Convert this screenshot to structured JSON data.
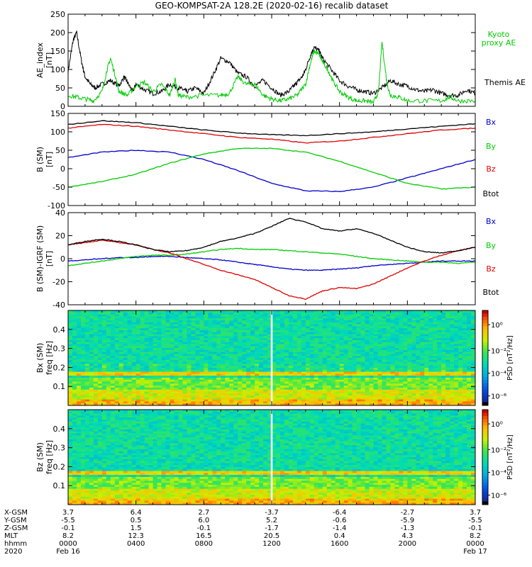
{
  "title": "GEO-KOMPSAT-2A 128.2E (2020-02-16) recalib dataset",
  "colors": {
    "black": "#000000",
    "green": "#00cc00",
    "red": "#dd0000",
    "blue": "#0000cc"
  },
  "chart_data": [
    {
      "type": "line",
      "panel": "ae_index",
      "ylabel": "AE_index",
      "yunit": "[nT]",
      "ylim": [
        0,
        250
      ],
      "yticks": [
        "0",
        "50",
        "100",
        "150",
        "200",
        "250"
      ],
      "series": [
        {
          "name": "Themis AE",
          "color": "black",
          "x": [
            0,
            0.3,
            0.5,
            0.8,
            1.0,
            1.3,
            1.6,
            2.0,
            2.5,
            3.0,
            3.3,
            3.5,
            3.8,
            4.0,
            4.5,
            5.0,
            5.5,
            6.0,
            6.5,
            6.8,
            7.0,
            7.5,
            8.0,
            8.5,
            9.0,
            9.5,
            10.0,
            10.5,
            11.0,
            11.5,
            12.0,
            12.5,
            13.0,
            13.3,
            13.5,
            13.8,
            14.0,
            14.3,
            14.5,
            14.8,
            15.0,
            15.5,
            16.0,
            16.5,
            17.0,
            17.5,
            18.0,
            18.5,
            19.0,
            19.5,
            20.0,
            20.5,
            21.0,
            21.5,
            22.0,
            22.5,
            23.0,
            23.5,
            24.0
          ],
          "y": [
            95,
            180,
            200,
            120,
            80,
            60,
            50,
            60,
            70,
            55,
            80,
            65,
            40,
            60,
            45,
            35,
            40,
            60,
            50,
            45,
            40,
            50,
            35,
            80,
            130,
            120,
            90,
            80,
            55,
            70,
            50,
            30,
            40,
            55,
            65,
            80,
            100,
            140,
            160,
            150,
            130,
            100,
            70,
            55,
            45,
            40,
            35,
            50,
            70,
            60,
            55,
            45,
            40,
            45,
            35,
            30,
            30,
            45,
            35
          ]
        },
        {
          "name": "Kyoto proxy AE",
          "color": "green",
          "x": [
            0,
            0.5,
            1.0,
            1.5,
            2.0,
            2.3,
            2.5,
            2.8,
            3.0,
            3.5,
            4.0,
            4.5,
            5.0,
            5.5,
            6.0,
            6.3,
            6.5,
            7.0,
            8.0,
            9.0,
            9.5,
            10.0,
            10.5,
            11.0,
            11.5,
            12.0,
            12.5,
            13.0,
            13.5,
            14.0,
            14.3,
            14.5,
            14.8,
            15.0,
            15.3,
            15.6,
            16.0,
            16.5,
            17.0,
            17.5,
            18.0,
            18.3,
            18.5,
            18.8,
            19.0,
            19.5,
            20.0,
            21.0,
            22.0,
            22.5,
            23.0,
            24.0
          ],
          "y": [
            30,
            25,
            20,
            15,
            40,
            100,
            130,
            80,
            40,
            30,
            55,
            65,
            40,
            60,
            30,
            75,
            30,
            25,
            30,
            30,
            35,
            80,
            60,
            60,
            30,
            20,
            15,
            20,
            30,
            60,
            120,
            150,
            140,
            120,
            100,
            70,
            40,
            25,
            15,
            15,
            10,
            40,
            175,
            60,
            30,
            25,
            15,
            15,
            15,
            25,
            15,
            15
          ]
        }
      ]
    },
    {
      "type": "line",
      "panel": "b_sm",
      "ylabel": "B (SM)",
      "yunit": "[nT]",
      "ylim": [
        -100,
        150
      ],
      "yticks": [
        "-100",
        "-50",
        "0",
        "50",
        "100",
        "150"
      ],
      "series": [
        {
          "name": "Bx",
          "color": "blue",
          "x": [
            0,
            2,
            4,
            6,
            8,
            10,
            12,
            14,
            16,
            18,
            20,
            22,
            24
          ],
          "y": [
            30,
            45,
            50,
            45,
            25,
            -5,
            -40,
            -60,
            -62,
            -50,
            -25,
            0,
            25
          ]
        },
        {
          "name": "By",
          "color": "green",
          "x": [
            0,
            2,
            4,
            6,
            8,
            10,
            12,
            14,
            16,
            18,
            20,
            22,
            24
          ],
          "y": [
            -50,
            -35,
            -15,
            15,
            40,
            55,
            55,
            45,
            20,
            -10,
            -40,
            -55,
            -50
          ]
        },
        {
          "name": "Bz",
          "color": "red",
          "x": [
            0,
            2,
            4,
            6,
            8,
            10,
            12,
            14,
            16,
            18,
            20,
            22,
            24
          ],
          "y": [
            110,
            120,
            115,
            105,
            95,
            85,
            80,
            70,
            75,
            85,
            95,
            105,
            110
          ]
        },
        {
          "name": "Btot",
          "color": "black",
          "x": [
            0,
            2,
            4,
            6,
            8,
            10,
            12,
            14,
            16,
            18,
            20,
            22,
            24
          ],
          "y": [
            120,
            130,
            125,
            115,
            105,
            97,
            92,
            90,
            95,
            100,
            108,
            115,
            122
          ]
        }
      ]
    },
    {
      "type": "line",
      "panel": "b_sm_igrf",
      "ylabel": "B (SM)-IGRF (SM)",
      "yunit": "[nT]",
      "ylim": [
        -40,
        40
      ],
      "yticks": [
        "-40",
        "-20",
        "0",
        "20",
        "40"
      ],
      "series": [
        {
          "name": "Bx",
          "color": "blue",
          "x": [
            0,
            1,
            2,
            3,
            4,
            5,
            6,
            7,
            8,
            9,
            10,
            11,
            12,
            13,
            14,
            15,
            16,
            17,
            18,
            19,
            20,
            21,
            22,
            23,
            24
          ],
          "y": [
            -2,
            -1,
            0,
            1,
            1,
            2,
            2,
            1,
            0,
            -1,
            -3,
            -5,
            -7,
            -9,
            -10,
            -10,
            -9,
            -8,
            -6,
            -5,
            -4,
            -3,
            -2,
            -2,
            -2
          ]
        },
        {
          "name": "By",
          "color": "green",
          "x": [
            0,
            1,
            2,
            3,
            4,
            5,
            6,
            7,
            8,
            9,
            10,
            11,
            12,
            13,
            14,
            15,
            16,
            17,
            18,
            19,
            20,
            21,
            22,
            23,
            24
          ],
          "y": [
            -6,
            -4,
            -2,
            0,
            2,
            3,
            3,
            4,
            6,
            8,
            9,
            8,
            8,
            7,
            6,
            5,
            4,
            2,
            0,
            -1,
            -2,
            -3,
            -3,
            -4,
            -3
          ]
        },
        {
          "name": "Bz",
          "color": "red",
          "x": [
            0,
            1,
            2,
            3,
            4,
            5,
            6,
            7,
            8,
            9,
            10,
            11,
            12,
            13,
            14,
            15,
            16,
            17,
            18,
            19,
            20,
            21,
            22,
            23,
            24
          ],
          "y": [
            12,
            14,
            16,
            14,
            12,
            8,
            5,
            0,
            -5,
            -10,
            -14,
            -18,
            -25,
            -32,
            -35,
            -28,
            -25,
            -26,
            -22,
            -15,
            -8,
            -2,
            3,
            7,
            10
          ]
        },
        {
          "name": "Btot",
          "color": "black",
          "x": [
            0,
            1,
            2,
            3,
            4,
            5,
            6,
            7,
            8,
            9,
            10,
            11,
            12,
            13,
            14,
            15,
            16,
            17,
            18,
            19,
            20,
            21,
            22,
            23,
            24
          ],
          "y": [
            12,
            15,
            17,
            15,
            12,
            8,
            6,
            7,
            10,
            15,
            18,
            22,
            28,
            35,
            32,
            26,
            24,
            26,
            22,
            16,
            10,
            6,
            5,
            7,
            10
          ]
        }
      ]
    },
    {
      "type": "heatmap",
      "panel": "bx_psd",
      "ylabel": "Bx (SM)",
      "yunit": "freq [Hz]",
      "ylim": [
        0,
        0.5
      ],
      "yticks": [
        "0.1",
        "0.2",
        "0.3",
        "0.4"
      ],
      "colorbar": {
        "label": "PSD [nT²/Hz]",
        "ticks": [
          "10⁰",
          "10⁻²",
          "10⁻⁴",
          "10⁻⁶"
        ]
      }
    },
    {
      "type": "heatmap",
      "panel": "bz_psd",
      "ylabel": "Bz (SM)",
      "yunit": "freq [Hz]",
      "ylim": [
        0,
        0.5
      ],
      "yticks": [
        "0.1",
        "0.2",
        "0.3",
        "0.4"
      ],
      "colorbar": {
        "label": "PSD [nT²/Hz]",
        "ticks": [
          "10⁰",
          "10⁻²",
          "10⁻⁴",
          "10⁻⁶"
        ]
      }
    }
  ],
  "legends": {
    "ae": [
      "Kyoto proxy AE",
      "Themis AE"
    ],
    "b_sm": [
      "Bx",
      "By",
      "Bz",
      "Btot"
    ],
    "b_igrf": [
      "Bx",
      "By",
      "Bz",
      "Btot"
    ]
  },
  "bottom_axis": {
    "row_labels": [
      "X-GSM",
      "Y-GSM",
      "Z-GSM",
      "MLT",
      "hhmm",
      "2020"
    ],
    "columns": [
      {
        "values": [
          "3.7",
          "-5.5",
          "-0.1",
          "8.2",
          "0000",
          "Feb 16"
        ]
      },
      {
        "values": [
          "6.4",
          "0.5",
          "1.5",
          "12.3",
          "0400",
          ""
        ]
      },
      {
        "values": [
          "2.7",
          "6.0",
          "-0.1",
          "16.5",
          "0800",
          ""
        ]
      },
      {
        "values": [
          "-3.7",
          "5.2",
          "-1.7",
          "20.5",
          "1200",
          ""
        ]
      },
      {
        "values": [
          "-6.4",
          "-0.6",
          "-1.4",
          "0.4",
          "1600",
          ""
        ]
      },
      {
        "values": [
          "-2.7",
          "-5.9",
          "-1.3",
          "4.3",
          "2000",
          ""
        ]
      },
      {
        "values": [
          "3.7",
          "-5.5",
          "-0.1",
          "8.2",
          "0000",
          "Feb 17"
        ]
      }
    ]
  }
}
